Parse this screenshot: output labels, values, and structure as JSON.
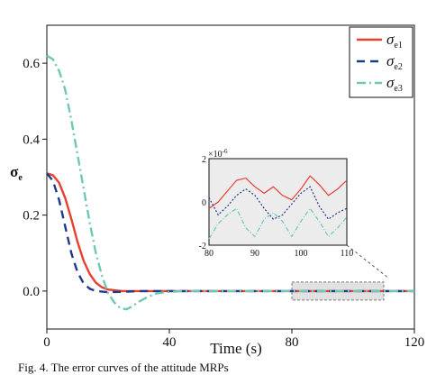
{
  "caption": "Fig. 4. The error curves of the attitude MRPs",
  "chart_data": {
    "type": "line",
    "xlabel": "Time (s)",
    "ylabel": "σ",
    "ylabel_sub": "e",
    "xlim": [
      0,
      120
    ],
    "ylim": [
      -0.1,
      0.7
    ],
    "xticks": [
      "0",
      "40",
      "80",
      "120"
    ],
    "yticks": [
      "0.0",
      "0.2",
      "0.4",
      "0.6"
    ],
    "legend_position": "top-right",
    "series": [
      {
        "name": "σ",
        "sub": "e1",
        "color": "#e8402f",
        "dash": "solid",
        "x": [
          0,
          2,
          4,
          6,
          8,
          10,
          12,
          14,
          16,
          18,
          20,
          22,
          25,
          30,
          35,
          40,
          60,
          80,
          100,
          120
        ],
        "y": [
          0.31,
          0.305,
          0.285,
          0.245,
          0.19,
          0.13,
          0.08,
          0.045,
          0.022,
          0.01,
          0.004,
          0.002,
          0.0,
          0.0,
          0.0,
          0.0,
          0.0,
          0.0,
          0.0,
          0.0
        ]
      },
      {
        "name": "σ",
        "sub": "e2",
        "color": "#1f3a8a",
        "dash": "dashed",
        "x": [
          0,
          2,
          4,
          6,
          8,
          10,
          12,
          14,
          16,
          20,
          25,
          30,
          35,
          40,
          60,
          80,
          100,
          120
        ],
        "y": [
          0.31,
          0.29,
          0.24,
          0.17,
          0.1,
          0.05,
          0.02,
          0.006,
          0.0,
          -0.003,
          -0.002,
          0.0,
          0.0,
          0.0,
          0.0,
          0.0,
          0.0,
          0.0
        ]
      },
      {
        "name": "σ",
        "sub": "e3",
        "color": "#6fc8b6",
        "dash": "dashdot",
        "x": [
          0,
          2,
          4,
          6,
          8,
          10,
          12,
          14,
          16,
          18,
          20,
          22,
          24,
          26,
          28,
          30,
          33,
          36,
          40,
          45,
          60,
          80,
          100,
          120
        ],
        "y": [
          0.62,
          0.61,
          0.58,
          0.53,
          0.45,
          0.36,
          0.27,
          0.18,
          0.1,
          0.04,
          -0.005,
          -0.03,
          -0.045,
          -0.048,
          -0.04,
          -0.028,
          -0.015,
          -0.006,
          -0.002,
          0.0,
          0.0,
          0.0,
          0.0,
          0.0
        ]
      }
    ],
    "highlight_region": {
      "x": [
        80,
        110
      ]
    },
    "inset": {
      "xlim": [
        80,
        110
      ],
      "ylim": [
        -2,
        2
      ],
      "xticks": [
        "80",
        "90",
        "100",
        "110"
      ],
      "yticks": [
        "2",
        "0",
        "-2"
      ],
      "yscale_label": "×10",
      "yscale_exp": "-6",
      "series": [
        {
          "x": [
            80,
            82,
            84,
            86,
            88,
            90,
            92,
            94,
            96,
            98,
            100,
            102,
            104,
            106,
            108,
            110
          ],
          "y": [
            -0.3,
            0.0,
            0.5,
            1.0,
            1.1,
            0.7,
            0.4,
            0.7,
            0.3,
            0.1,
            0.6,
            1.2,
            0.8,
            0.3,
            0.6,
            1.0
          ]
        },
        {
          "x": [
            80,
            82,
            84,
            86,
            88,
            90,
            92,
            94,
            96,
            98,
            100,
            102,
            104,
            106,
            108,
            110
          ],
          "y": [
            0.2,
            -0.6,
            -0.2,
            0.3,
            0.6,
            0.3,
            -0.3,
            -0.8,
            -0.6,
            -0.1,
            0.4,
            0.7,
            -0.2,
            -0.8,
            -0.5,
            -0.3
          ]
        },
        {
          "x": [
            80,
            82,
            84,
            86,
            88,
            90,
            92,
            94,
            96,
            98,
            100,
            102,
            104,
            106,
            108,
            110
          ],
          "y": [
            -1.7,
            -1.0,
            -0.6,
            -0.3,
            -1.2,
            -1.6,
            -0.8,
            -0.5,
            -0.9,
            -1.6,
            -0.9,
            -0.3,
            -0.9,
            -1.6,
            -1.2,
            -0.7
          ]
        }
      ]
    }
  }
}
